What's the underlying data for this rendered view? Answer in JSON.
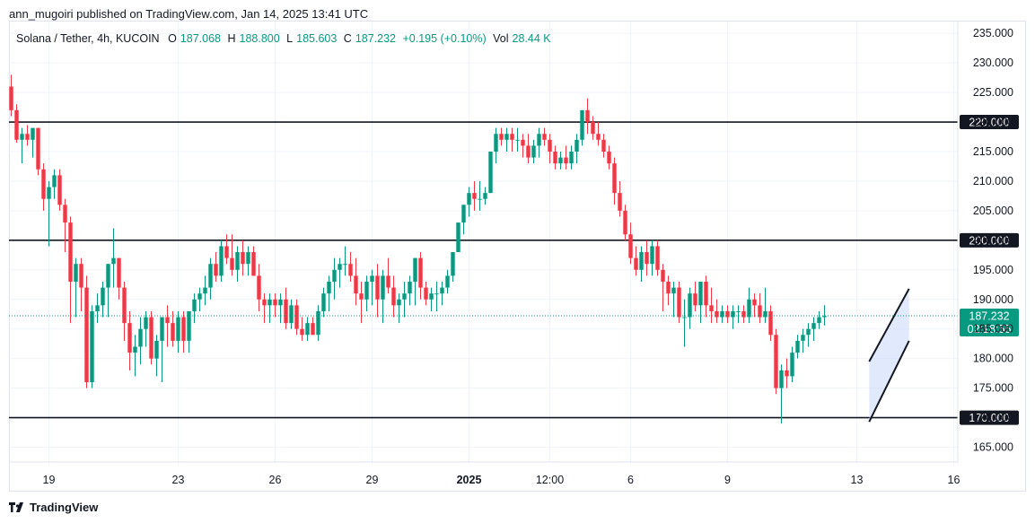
{
  "header": {
    "publisher_line": "ann_mugoiri published on TradingView.com, Jan 14, 2025 13:41 UTC"
  },
  "legend": {
    "symbol": "Solana / Tether, 4h, KUCOIN",
    "open_label": "O",
    "open": "187.068",
    "high_label": "H",
    "high": "188.800",
    "low_label": "L",
    "low": "185.603",
    "close_label": "C",
    "close": "187.232",
    "change": "+0.195 (+0.10%)",
    "vol_label": "Vol",
    "vol": "28.44 K"
  },
  "footer": {
    "brand": "TradingView"
  },
  "colors": {
    "up": "#089981",
    "down": "#f23645",
    "level_line": "#131722",
    "price_badge": "#089981",
    "channel_fill": "#c9d7fb",
    "grid": "#f0f3fa"
  },
  "chart_data": {
    "type": "candlestick",
    "title": "Solana / Tether, 4h, KUCOIN",
    "y_axis": {
      "ticks": [
        "235.000",
        "230.000",
        "225.000",
        "220.000",
        "215.000",
        "210.000",
        "205.000",
        "200.000",
        "195.000",
        "190.000",
        "185.000",
        "180.000",
        "175.000",
        "170.000",
        "165.000"
      ],
      "range": [
        162.5,
        237
      ]
    },
    "x_axis": {
      "ticks": [
        {
          "label": "19",
          "bar": 7
        },
        {
          "label": "23",
          "bar": 31
        },
        {
          "label": "26",
          "bar": 49
        },
        {
          "label": "29",
          "bar": 67
        },
        {
          "label": "2025",
          "bar": 85,
          "bold": true
        },
        {
          "label": "12:00",
          "bar": 100
        },
        {
          "label": "6",
          "bar": 115
        },
        {
          "label": "9",
          "bar": 133
        },
        {
          "label": "13",
          "bar": 157
        },
        {
          "label": "16",
          "bar": 175
        }
      ]
    },
    "levels": [
      {
        "price": 220,
        "label": "220.000"
      },
      {
        "price": 200,
        "label": "200.000"
      },
      {
        "price": 170,
        "label": "170.000"
      }
    ],
    "current_price": {
      "label": "187.232",
      "countdown": "02:18:55",
      "value": 187.232
    },
    "channel": {
      "start_bar": 159.3,
      "end_bar": 166.7,
      "upper": [
        179.5,
        191.8
      ],
      "lower": [
        169.3,
        183.0
      ]
    },
    "candles": [
      [
        226,
        228,
        221,
        222
      ],
      [
        222,
        223,
        216.5,
        217
      ],
      [
        217,
        219,
        213,
        218
      ],
      [
        218,
        219.5,
        216,
        217
      ],
      [
        217,
        219,
        214,
        219
      ],
      [
        219,
        219,
        211,
        212
      ],
      [
        212,
        213,
        205,
        207
      ],
      [
        207,
        210,
        199,
        209
      ],
      [
        209,
        212,
        207,
        211
      ],
      [
        211,
        212,
        205,
        206
      ],
      [
        206,
        207,
        198,
        203
      ],
      [
        203,
        204,
        186,
        193
      ],
      [
        193,
        197,
        187,
        196
      ],
      [
        196,
        197,
        188,
        192
      ],
      [
        192,
        194,
        175,
        176
      ],
      [
        176,
        189,
        175,
        188
      ],
      [
        188,
        191,
        186,
        189
      ],
      [
        189,
        193,
        187,
        192
      ],
      [
        192,
        196,
        187,
        196
      ],
      [
        196,
        202,
        192,
        197
      ],
      [
        197,
        197,
        190,
        192
      ],
      [
        192,
        193,
        183,
        186
      ],
      [
        186,
        188,
        178,
        181
      ],
      [
        181,
        184,
        177,
        182
      ],
      [
        182,
        187,
        179,
        185
      ],
      [
        185,
        188,
        182,
        187
      ],
      [
        187,
        188,
        179,
        180
      ],
      [
        180,
        184,
        177,
        183
      ],
      [
        183,
        187,
        176,
        187
      ],
      [
        187,
        189,
        182,
        186
      ],
      [
        186,
        188,
        182,
        183
      ],
      [
        183,
        188,
        181,
        187
      ],
      [
        187,
        188,
        181,
        183
      ],
      [
        183,
        188,
        181,
        188
      ],
      [
        188,
        191,
        186,
        190
      ],
      [
        190,
        192,
        188,
        191
      ],
      [
        191,
        194,
        189,
        192
      ],
      [
        192,
        197,
        190,
        196
      ],
      [
        196,
        198,
        193,
        194
      ],
      [
        194,
        200,
        193,
        199
      ],
      [
        199,
        201,
        196,
        197
      ],
      [
        197,
        201,
        194,
        195
      ],
      [
        195,
        199,
        193,
        198
      ],
      [
        198,
        200,
        194,
        196
      ],
      [
        196,
        199,
        194,
        198
      ],
      [
        198,
        199,
        194,
        194
      ],
      [
        194,
        196,
        188,
        190
      ],
      [
        190,
        191,
        186,
        189
      ],
      [
        189,
        191,
        186,
        190
      ],
      [
        190,
        191,
        187,
        189
      ],
      [
        189,
        191,
        186,
        190
      ],
      [
        190,
        192,
        185,
        186
      ],
      [
        186,
        190,
        185,
        189
      ],
      [
        189,
        190,
        184,
        185
      ],
      [
        185,
        187,
        183,
        184
      ],
      [
        184,
        187,
        183,
        186
      ],
      [
        186,
        187,
        184,
        184
      ],
      [
        184,
        189,
        183,
        188
      ],
      [
        188,
        192,
        187,
        191
      ],
      [
        191,
        194,
        188,
        193
      ],
      [
        193,
        197,
        190,
        195
      ],
      [
        195,
        197,
        192,
        196
      ],
      [
        196,
        199,
        194,
        196
      ],
      [
        196,
        198,
        193,
        194
      ],
      [
        194,
        197,
        189,
        191
      ],
      [
        191,
        193,
        186,
        190
      ],
      [
        190,
        194,
        188,
        193
      ],
      [
        193,
        195,
        189,
        194
      ],
      [
        194,
        196,
        187,
        190
      ],
      [
        190,
        195,
        186,
        194
      ],
      [
        194,
        197,
        191,
        192
      ],
      [
        192,
        194,
        187,
        189
      ],
      [
        189,
        191,
        186,
        190
      ],
      [
        190,
        193,
        187,
        191
      ],
      [
        191,
        194,
        189,
        193
      ],
      [
        193,
        197,
        189,
        197
      ],
      [
        197,
        198,
        190,
        192
      ],
      [
        192,
        193,
        189,
        190
      ],
      [
        190,
        192,
        188,
        191
      ],
      [
        191,
        193,
        188,
        191
      ],
      [
        191,
        193,
        189,
        192
      ],
      [
        192,
        195,
        191,
        194
      ],
      [
        194,
        198,
        193,
        198
      ],
      [
        198,
        203,
        198,
        203
      ],
      [
        203,
        206,
        201,
        206
      ],
      [
        206,
        209,
        204,
        208
      ],
      [
        208,
        210,
        205,
        207
      ],
      [
        207,
        210,
        205,
        207
      ],
      [
        207,
        209,
        206,
        208
      ],
      [
        208,
        215,
        208,
        215
      ],
      [
        215,
        219,
        213,
        218
      ],
      [
        218,
        219,
        216,
        217
      ],
      [
        217,
        219,
        215,
        218
      ],
      [
        218,
        219,
        215,
        217
      ],
      [
        217,
        219,
        215,
        217
      ],
      [
        217,
        218,
        214,
        216
      ],
      [
        216,
        218,
        213,
        214
      ],
      [
        214,
        217,
        213,
        216
      ],
      [
        216,
        219,
        214,
        218
      ],
      [
        218,
        219,
        216,
        217
      ],
      [
        217,
        218,
        213,
        215
      ],
      [
        215,
        216,
        212,
        213
      ],
      [
        213,
        215,
        212,
        214
      ],
      [
        214,
        216,
        212,
        213
      ],
      [
        213,
        216,
        212,
        215
      ],
      [
        215,
        218,
        213,
        217
      ],
      [
        217,
        222,
        216,
        222
      ],
      [
        222,
        224,
        218,
        220
      ],
      [
        220,
        221,
        217,
        218
      ],
      [
        218,
        220,
        216,
        217
      ],
      [
        217,
        218,
        214,
        215
      ],
      [
        215,
        216,
        212,
        213
      ],
      [
        213,
        214,
        206,
        208
      ],
      [
        208,
        210,
        204,
        205
      ],
      [
        205,
        206,
        200,
        201
      ],
      [
        201,
        203,
        196,
        197
      ],
      [
        197,
        199,
        194,
        195
      ],
      [
        195,
        199,
        193,
        198
      ],
      [
        198,
        200,
        194,
        196
      ],
      [
        196,
        200,
        194,
        199
      ],
      [
        199,
        200,
        194,
        195
      ],
      [
        195,
        196,
        188,
        193
      ],
      [
        193,
        194,
        189,
        191
      ],
      [
        191,
        193,
        187,
        192
      ],
      [
        192,
        193,
        186,
        187
      ],
      [
        187,
        190,
        182,
        187
      ],
      [
        187,
        192,
        185,
        191
      ],
      [
        191,
        193,
        188,
        189
      ],
      [
        189,
        193,
        186,
        193
      ],
      [
        193,
        194,
        187,
        189
      ],
      [
        189,
        192,
        186,
        188
      ],
      [
        188,
        190,
        186,
        187
      ],
      [
        187,
        189,
        186,
        188
      ],
      [
        188,
        189,
        186,
        187
      ],
      [
        187,
        189,
        185,
        188
      ],
      [
        188,
        189,
        186,
        188
      ],
      [
        188,
        189,
        186,
        187
      ],
      [
        187,
        192,
        186,
        190
      ],
      [
        190,
        191,
        187,
        189
      ],
      [
        189,
        191,
        186,
        187
      ],
      [
        187,
        192,
        186,
        188
      ],
      [
        188,
        189,
        183,
        184
      ],
      [
        184,
        185,
        174,
        175
      ],
      [
        175,
        179,
        169,
        178
      ],
      [
        178,
        180,
        175,
        177
      ],
      [
        177,
        182,
        176,
        181
      ],
      [
        181,
        184,
        180,
        183
      ],
      [
        183,
        185,
        181,
        184
      ],
      [
        184,
        186,
        182,
        185
      ],
      [
        185,
        187,
        183,
        186
      ],
      [
        186,
        188,
        185,
        187
      ],
      [
        187,
        189,
        185.6,
        187.2
      ]
    ]
  }
}
